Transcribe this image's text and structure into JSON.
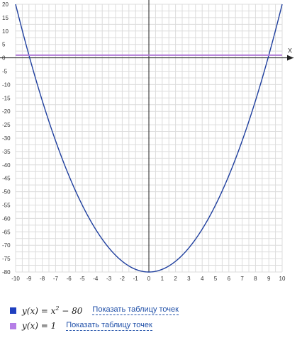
{
  "chart_data": {
    "type": "line",
    "title": "",
    "xlabel": "X",
    "ylabel": "",
    "xlim": [
      -10,
      10
    ],
    "ylim": [
      -80,
      20
    ],
    "grid": true,
    "x_ticks": [
      -10,
      -9,
      -8,
      -7,
      -6,
      -5,
      -4,
      -3,
      -2,
      -1,
      0,
      1,
      2,
      3,
      4,
      5,
      6,
      7,
      8,
      9,
      10
    ],
    "y_ticks": [
      20,
      15,
      10,
      5,
      0,
      -5,
      -10,
      -15,
      -20,
      -25,
      -30,
      -35,
      -40,
      -45,
      -50,
      -55,
      -60,
      -65,
      -70,
      -75,
      -80
    ],
    "series": [
      {
        "name": "y(x) = x^2 - 80",
        "color": "#1f3f9e",
        "x": [
          -10,
          -9,
          -8,
          -7,
          -6,
          -5,
          -4,
          -3,
          -2,
          -1,
          0,
          1,
          2,
          3,
          4,
          5,
          6,
          7,
          8,
          9,
          10
        ],
        "y": [
          20,
          1,
          -16,
          -31,
          -44,
          -55,
          -64,
          -71,
          -76,
          -79,
          -80,
          -79,
          -76,
          -71,
          -64,
          -55,
          -44,
          -31,
          -16,
          1,
          20
        ]
      },
      {
        "name": "y(x) = 1",
        "color": "#b07ad6",
        "x": [
          -10,
          10
        ],
        "y": [
          1,
          1
        ]
      }
    ]
  },
  "legend": [
    {
      "color": "#1f3fbf",
      "link": "Показать таблицу точек"
    },
    {
      "color": "#b57ee6",
      "link": "Показать таблицу точек"
    }
  ]
}
